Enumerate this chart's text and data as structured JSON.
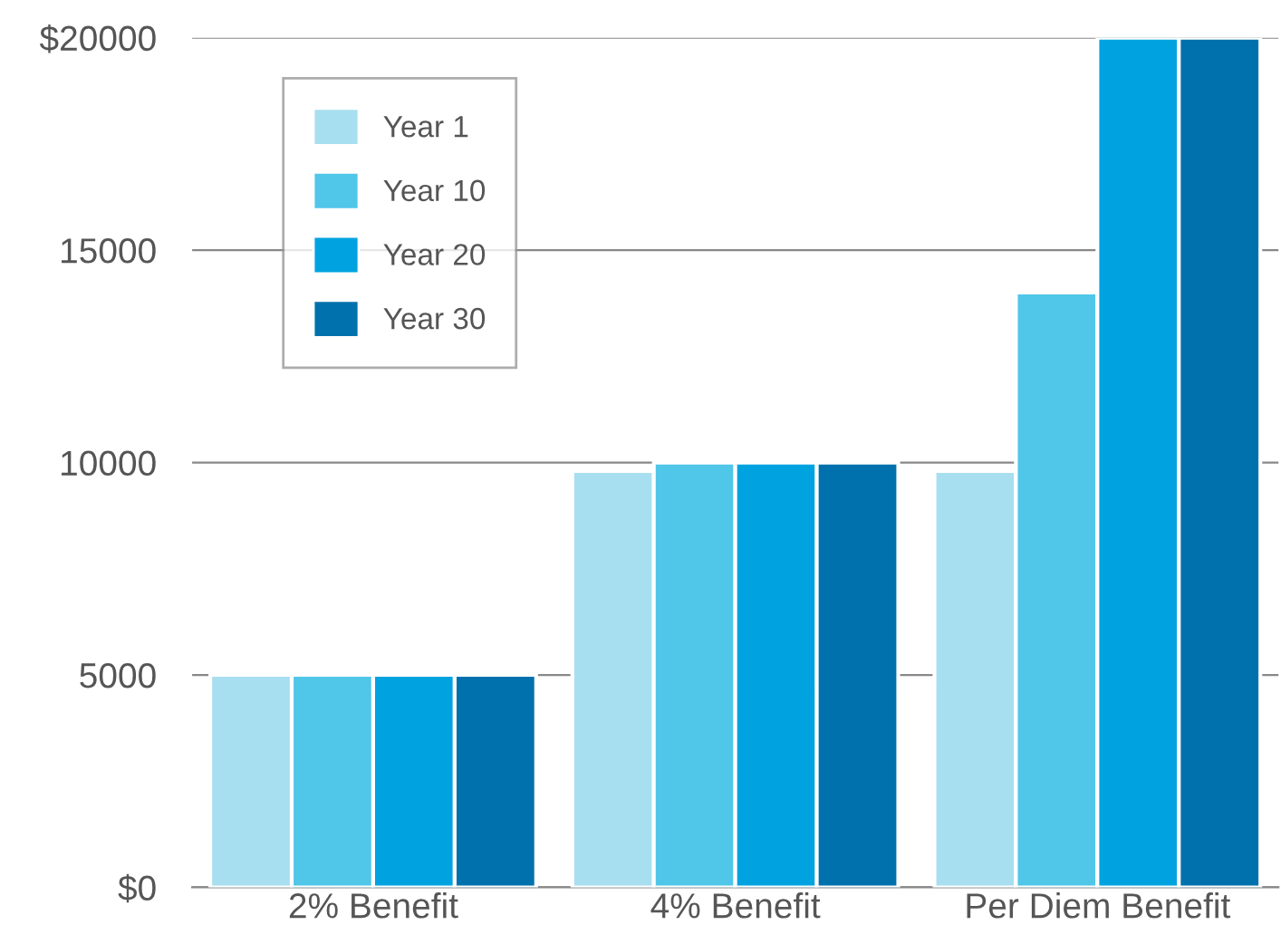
{
  "chart_data": {
    "type": "bar",
    "categories": [
      "2% Benefit",
      "4% Benefit",
      "Per Diem Benefit"
    ],
    "series": [
      {
        "name": "Year 1",
        "color": "#a8dff0",
        "values": [
          5000,
          9800,
          9800
        ]
      },
      {
        "name": "Year 10",
        "color": "#50c6e8",
        "values": [
          5000,
          10000,
          14000
        ]
      },
      {
        "name": "Year 20",
        "color": "#00a3e0",
        "values": [
          5000,
          10000,
          20000
        ]
      },
      {
        "name": "Year 30",
        "color": "#0071ad",
        "values": [
          5000,
          10000,
          20000
        ]
      }
    ],
    "ylim": [
      0,
      20000
    ],
    "yticks": [
      {
        "value": 0,
        "label": "$0"
      },
      5000,
      10000,
      15000,
      {
        "value": 20000,
        "label": "$20000"
      }
    ],
    "grid": "y",
    "legend": "top left"
  }
}
